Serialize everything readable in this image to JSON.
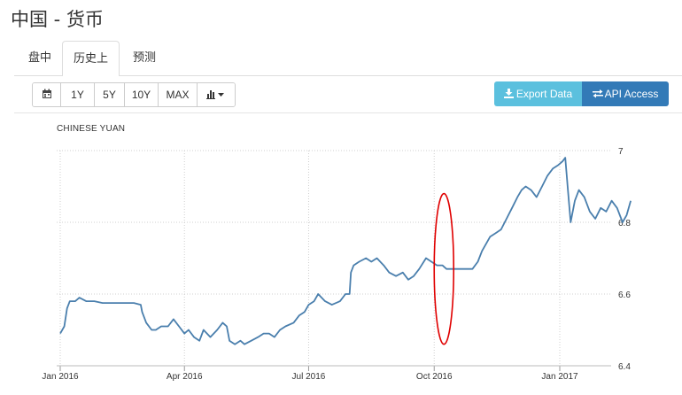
{
  "header": {
    "title": "中国 - 货币"
  },
  "tabs": [
    {
      "label": "盘中",
      "active": false
    },
    {
      "label": "历史上",
      "active": true
    },
    {
      "label": "预测",
      "active": false
    }
  ],
  "toolbar": {
    "calendar_icon": "calendar-icon",
    "ranges": [
      "1Y",
      "5Y",
      "10Y",
      "MAX"
    ],
    "chart_type_icon": "bar-chart-icon",
    "export_label": "Export Data",
    "api_label": "API Access",
    "export_color": "#5bc0de",
    "api_color": "#337ab7"
  },
  "chart_data": {
    "type": "line",
    "title": "CHINESE YUAN",
    "xlabel": "",
    "ylabel": "",
    "x_ticks": [
      "Jan 2016",
      "Apr 2016",
      "Jul 2016",
      "Oct 2016",
      "Jan 2017"
    ],
    "y_ticks": [
      "7",
      "6.8",
      "6.6",
      "6.4"
    ],
    "ylim": [
      6.4,
      7.0
    ],
    "grid": true,
    "line_color": "#4a7fad",
    "annotation": {
      "shape": "ellipse",
      "color": "#e00000",
      "x": "2016-10-01",
      "y_range": [
        6.46,
        6.88
      ]
    },
    "series": [
      {
        "values": [
          [
            "2016-01-01",
            6.49
          ],
          [
            "2016-01-04",
            6.51
          ],
          [
            "2016-01-06",
            6.56
          ],
          [
            "2016-01-08",
            6.58
          ],
          [
            "2016-01-12",
            6.58
          ],
          [
            "2016-01-15",
            6.59
          ],
          [
            "2016-01-20",
            6.58
          ],
          [
            "2016-01-26",
            6.58
          ],
          [
            "2016-02-01",
            6.575
          ],
          [
            "2016-02-10",
            6.575
          ],
          [
            "2016-02-18",
            6.575
          ],
          [
            "2016-02-24",
            6.575
          ],
          [
            "2016-02-29",
            6.57
          ],
          [
            "2016-03-01",
            6.55
          ],
          [
            "2016-03-04",
            6.52
          ],
          [
            "2016-03-08",
            6.5
          ],
          [
            "2016-03-11",
            6.5
          ],
          [
            "2016-03-15",
            6.51
          ],
          [
            "2016-03-20",
            6.51
          ],
          [
            "2016-03-24",
            6.53
          ],
          [
            "2016-03-28",
            6.51
          ],
          [
            "2016-04-01",
            6.49
          ],
          [
            "2016-04-04",
            6.5
          ],
          [
            "2016-04-08",
            6.48
          ],
          [
            "2016-04-12",
            6.47
          ],
          [
            "2016-04-15",
            6.5
          ],
          [
            "2016-04-20",
            6.48
          ],
          [
            "2016-04-25",
            6.5
          ],
          [
            "2016-04-29",
            6.52
          ],
          [
            "2016-05-02",
            6.51
          ],
          [
            "2016-05-04",
            6.47
          ],
          [
            "2016-05-08",
            6.46
          ],
          [
            "2016-05-12",
            6.47
          ],
          [
            "2016-05-15",
            6.46
          ],
          [
            "2016-05-20",
            6.47
          ],
          [
            "2016-05-25",
            6.48
          ],
          [
            "2016-05-29",
            6.49
          ],
          [
            "2016-06-02",
            6.49
          ],
          [
            "2016-06-06",
            6.48
          ],
          [
            "2016-06-10",
            6.5
          ],
          [
            "2016-06-14",
            6.51
          ],
          [
            "2016-06-20",
            6.52
          ],
          [
            "2016-06-24",
            6.54
          ],
          [
            "2016-06-28",
            6.55
          ],
          [
            "2016-07-01",
            6.57
          ],
          [
            "2016-07-05",
            6.58
          ],
          [
            "2016-07-08",
            6.6
          ],
          [
            "2016-07-13",
            6.58
          ],
          [
            "2016-07-18",
            6.57
          ],
          [
            "2016-07-24",
            6.58
          ],
          [
            "2016-07-28",
            6.6
          ],
          [
            "2016-07-31",
            6.6
          ],
          [
            "2016-08-01",
            6.66
          ],
          [
            "2016-08-03",
            6.68
          ],
          [
            "2016-08-07",
            6.69
          ],
          [
            "2016-08-12",
            6.7
          ],
          [
            "2016-08-16",
            6.69
          ],
          [
            "2016-08-20",
            6.7
          ],
          [
            "2016-08-25",
            6.68
          ],
          [
            "2016-08-29",
            6.66
          ],
          [
            "2016-09-03",
            6.65
          ],
          [
            "2016-09-08",
            6.66
          ],
          [
            "2016-09-12",
            6.64
          ],
          [
            "2016-09-16",
            6.65
          ],
          [
            "2016-09-20",
            6.67
          ],
          [
            "2016-09-25",
            6.7
          ],
          [
            "2016-09-29",
            6.69
          ],
          [
            "2016-10-03",
            6.68
          ],
          [
            "2016-10-07",
            6.68
          ],
          [
            "2016-10-10",
            6.67
          ],
          [
            "2016-10-14",
            6.67
          ],
          [
            "2016-10-18",
            6.67
          ],
          [
            "2016-10-22",
            6.67
          ],
          [
            "2016-10-25",
            6.67
          ],
          [
            "2016-10-29",
            6.67
          ],
          [
            "2016-11-02",
            6.69
          ],
          [
            "2016-11-05",
            6.72
          ],
          [
            "2016-11-08",
            6.74
          ],
          [
            "2016-11-11",
            6.76
          ],
          [
            "2016-11-15",
            6.77
          ],
          [
            "2016-11-19",
            6.78
          ],
          [
            "2016-11-23",
            6.81
          ],
          [
            "2016-11-27",
            6.84
          ],
          [
            "2016-12-01",
            6.87
          ],
          [
            "2016-12-04",
            6.89
          ],
          [
            "2016-12-07",
            6.9
          ],
          [
            "2016-12-11",
            6.89
          ],
          [
            "2016-12-15",
            6.87
          ],
          [
            "2016-12-19",
            6.9
          ],
          [
            "2016-12-23",
            6.93
          ],
          [
            "2016-12-27",
            6.95
          ],
          [
            "2016-12-31",
            6.96
          ],
          [
            "2017-01-03",
            6.97
          ],
          [
            "2017-01-05",
            6.98
          ],
          [
            "2017-01-07",
            6.89
          ],
          [
            "2017-01-09",
            6.8
          ],
          [
            "2017-01-12",
            6.86
          ],
          [
            "2017-01-15",
            6.89
          ],
          [
            "2017-01-19",
            6.87
          ],
          [
            "2017-01-23",
            6.83
          ],
          [
            "2017-01-27",
            6.81
          ],
          [
            "2017-01-31",
            6.84
          ],
          [
            "2017-02-04",
            6.83
          ],
          [
            "2017-02-08",
            6.86
          ],
          [
            "2017-02-12",
            6.84
          ],
          [
            "2017-02-16",
            6.8
          ],
          [
            "2017-02-19",
            6.82
          ],
          [
            "2017-02-22",
            6.86
          ]
        ]
      }
    ]
  }
}
